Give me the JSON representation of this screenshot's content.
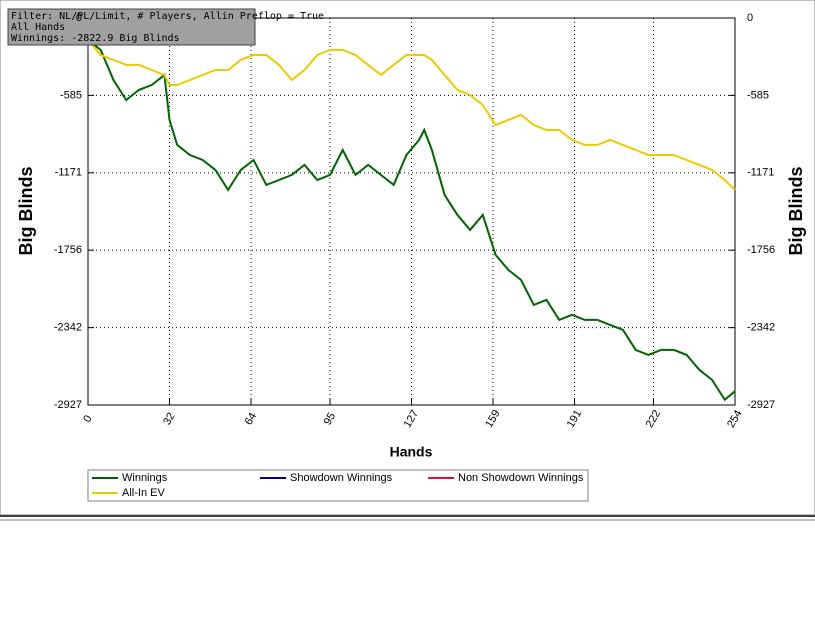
{
  "chart_data": {
    "type": "line",
    "annotations": [
      "Filter: NL/PL/Limit, # Players, Allin Preflop = True",
      "All Hands",
      "Winnings: -2822.9 Big Blinds"
    ],
    "xlabel": "Hands",
    "ylabel": "Big Blinds",
    "x": [
      0,
      5,
      10,
      15,
      20,
      25,
      30,
      32,
      35,
      40,
      45,
      50,
      55,
      60,
      65,
      70,
      75,
      80,
      85,
      90,
      95,
      100,
      105,
      110,
      115,
      120,
      125,
      130,
      132,
      135,
      140,
      145,
      150,
      155,
      160,
      165,
      170,
      175,
      180,
      185,
      190,
      195,
      200,
      205,
      210,
      215,
      220,
      225,
      230,
      235,
      240,
      245,
      250,
      254
    ],
    "xlim": [
      0,
      254
    ],
    "xticks": [
      0,
      32,
      64,
      95,
      127,
      159,
      191,
      222,
      254
    ],
    "ylim": [
      -2927,
      0
    ],
    "yticks": [
      0,
      -585,
      -1171,
      -1756,
      -2342,
      -2927
    ],
    "grid": true,
    "series": [
      {
        "name": "Winnings",
        "color": "#006400",
        "values": [
          -166,
          -242,
          -469,
          -620,
          -544,
          -507,
          -431,
          -771,
          -960,
          -1036,
          -1074,
          -1149,
          -1300,
          -1149,
          -1074,
          -1262,
          -1225,
          -1187,
          -1111,
          -1225,
          -1187,
          -998,
          -1187,
          -1111,
          -1187,
          -1262,
          -1036,
          -922,
          -847,
          -998,
          -1338,
          -1489,
          -1603,
          -1489,
          -1792,
          -1905,
          -1981,
          -2170,
          -2132,
          -2283,
          -2245,
          -2283,
          -2283,
          -2321,
          -2358,
          -2510,
          -2548,
          -2510,
          -2510,
          -2548,
          -2661,
          -2737,
          -2888,
          -2822.9
        ]
      },
      {
        "name": "Showdown Winnings",
        "color": "#00008b",
        "values": [
          null,
          null,
          null,
          null,
          null,
          null,
          null,
          null,
          null,
          null,
          null,
          null,
          null,
          null,
          null,
          null,
          null,
          null,
          null,
          null,
          null,
          null,
          null,
          null,
          null,
          null,
          null,
          null,
          null,
          null,
          null,
          null,
          null,
          null,
          null,
          null,
          null,
          null,
          null,
          null,
          null,
          null,
          null,
          null,
          null,
          null,
          null,
          null,
          null,
          null,
          null,
          null,
          null,
          null
        ]
      },
      {
        "name": "Non Showdown Winnings",
        "color": "#dc143c",
        "values": [
          null,
          null,
          null,
          null,
          null,
          null,
          null,
          null,
          null,
          null,
          null,
          null,
          null,
          null,
          null,
          null,
          null,
          null,
          null,
          null,
          null,
          null,
          null,
          null,
          null,
          null,
          null,
          null,
          null,
          null,
          null,
          null,
          null,
          null,
          null,
          null,
          null,
          null,
          null,
          null,
          null,
          null,
          null,
          null,
          null,
          null,
          null,
          null,
          null,
          null,
          null,
          null,
          null,
          null
        ]
      },
      {
        "name": "All-In EV",
        "color": "#f0c800",
        "values": [
          -166,
          -280,
          -318,
          -355,
          -355,
          -393,
          -431,
          -507,
          -507,
          -469,
          -431,
          -393,
          -393,
          -318,
          -280,
          -280,
          -355,
          -469,
          -393,
          -280,
          -242,
          -242,
          -280,
          -355,
          -431,
          -355,
          -280,
          -280,
          -280,
          -318,
          -431,
          -544,
          -582,
          -658,
          -809,
          -771,
          -733,
          -809,
          -847,
          -847,
          -922,
          -960,
          -960,
          -922,
          -960,
          -998,
          -1036,
          -1036,
          -1036,
          -1074,
          -1111,
          -1149,
          -1225,
          -1300
        ]
      }
    ]
  }
}
